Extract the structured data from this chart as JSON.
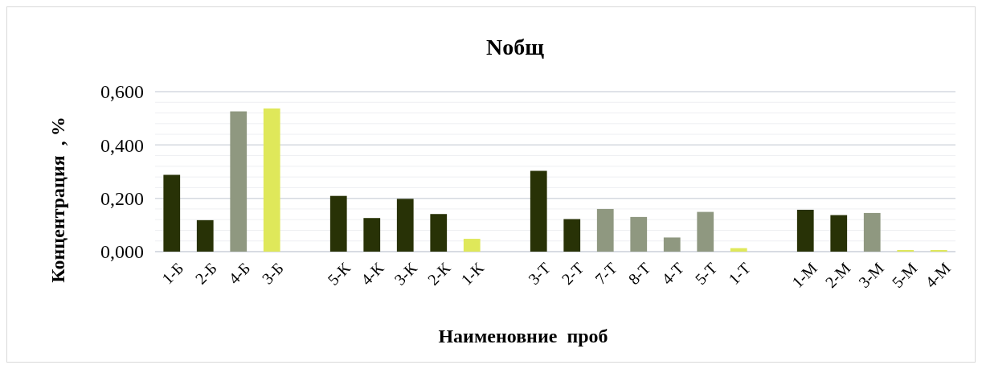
{
  "chart_data": {
    "type": "bar",
    "title": "Nобщ",
    "xlabel": "Наименовние  проб",
    "ylabel": "Концентрация  , %",
    "categories": [
      "1-Б",
      "2-Б",
      "4-Б",
      "3-Б",
      null,
      "5-К",
      "4-К",
      "3-К",
      "2-К",
      "1-К",
      null,
      "3-Т",
      "2-Т",
      "7-Т",
      "8-Т",
      "4-Т",
      "5-Т",
      "1-Т",
      null,
      "1-М",
      "2-М",
      "3-М",
      "5-М",
      "4-М"
    ],
    "values": [
      0.288,
      0.118,
      0.526,
      0.537,
      null,
      0.209,
      0.126,
      0.198,
      0.141,
      0.048,
      null,
      0.303,
      0.122,
      0.16,
      0.13,
      0.053,
      0.149,
      0.013,
      null,
      0.157,
      0.137,
      0.145,
      0.006,
      0.006
    ],
    "colors": [
      "#283206",
      "#283206",
      "#8f9880",
      "#dfe85a",
      null,
      "#283206",
      "#283206",
      "#283206",
      "#283206",
      "#dfe85a",
      null,
      "#283206",
      "#283206",
      "#8f9880",
      "#8f9880",
      "#8f9880",
      "#8f9880",
      "#dfe85a",
      null,
      "#283206",
      "#283206",
      "#8f9880",
      "#dfe85a",
      "#dfe85a"
    ],
    "ylim": [
      0,
      0.6
    ],
    "yticks": [
      {
        "value": 0,
        "label": "0,000"
      },
      {
        "value": 0.04,
        "label": null
      },
      {
        "value": 0.08,
        "label": null
      },
      {
        "value": 0.12,
        "label": null
      },
      {
        "value": 0.16,
        "label": null
      },
      {
        "value": 0.2,
        "label": "0,200"
      },
      {
        "value": 0.24,
        "label": null
      },
      {
        "value": 0.28,
        "label": null
      },
      {
        "value": 0.32,
        "label": null
      },
      {
        "value": 0.36,
        "label": null
      },
      {
        "value": 0.4,
        "label": "0,400"
      },
      {
        "value": 0.44,
        "label": null
      },
      {
        "value": 0.48,
        "label": null
      },
      {
        "value": 0.52,
        "label": null
      },
      {
        "value": 0.56,
        "label": null
      },
      {
        "value": 0.6,
        "label": "0,600"
      }
    ],
    "grid": "y"
  }
}
